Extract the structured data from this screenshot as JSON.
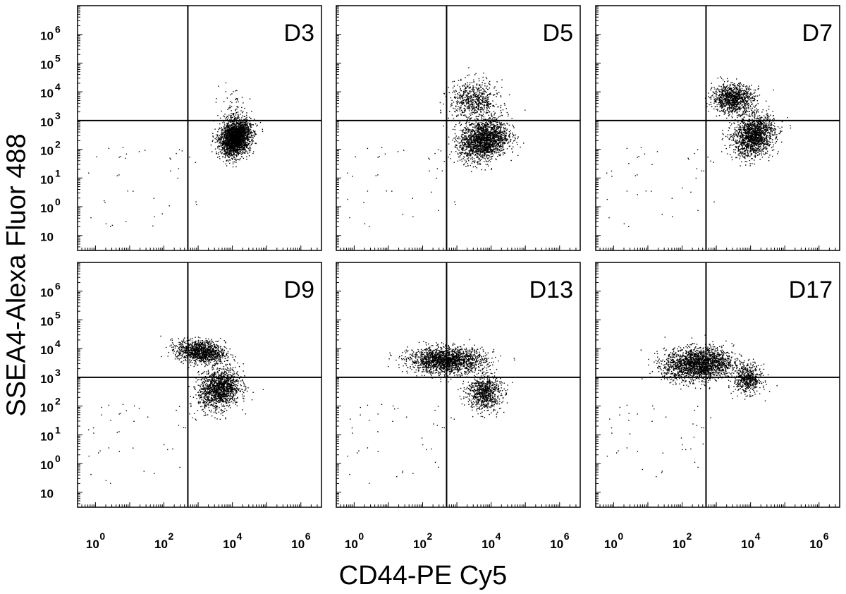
{
  "figure": {
    "x_label": "CD44-PE Cy5",
    "y_label": "SSEA4-Alexa Fluor 488"
  },
  "chart_data": {
    "type": "scatter",
    "layout": "2x3 grid of flow cytometry dot plots with quadrant gates",
    "x_scale": "log",
    "y_scale": "log",
    "xlim": [
      0.3,
      4000000
    ],
    "ylim": [
      0.03,
      10000000
    ],
    "x_ticks": [
      {
        "base": "10",
        "exp": "0",
        "value": 1
      },
      {
        "base": "10",
        "exp": "2",
        "value": 100
      },
      {
        "base": "10",
        "exp": "4",
        "value": 10000
      },
      {
        "base": "10",
        "exp": "6",
        "value": 1000000
      }
    ],
    "y_ticks": [
      {
        "base": "10",
        "exp": "",
        "value": 0.1
      },
      {
        "base": "10",
        "exp": "0",
        "value": 1
      },
      {
        "base": "10",
        "exp": "1",
        "value": 10
      },
      {
        "base": "10",
        "exp": "2",
        "value": 100
      },
      {
        "base": "10",
        "exp": "3",
        "value": 1000
      },
      {
        "base": "10",
        "exp": "4",
        "value": 10000
      },
      {
        "base": "10",
        "exp": "5",
        "value": 100000
      },
      {
        "base": "10",
        "exp": "6",
        "value": 1000000
      }
    ],
    "marker_color": "#000000",
    "panels": [
      {
        "title": "D3",
        "gate_x": 500,
        "gate_y": 1000,
        "populations": [
          {
            "cx": 12000,
            "cy": 250,
            "sx": 0.22,
            "sy": 0.3,
            "rho": 0.2,
            "weight": 0.96
          },
          {
            "cx": 10000,
            "cy": 1500,
            "sx": 0.2,
            "sy": 0.45,
            "rho": 0.0,
            "weight": 0.04
          }
        ]
      },
      {
        "title": "D5",
        "gate_x": 500,
        "gate_y": 1000,
        "populations": [
          {
            "cx": 6000,
            "cy": 220,
            "sx": 0.35,
            "sy": 0.35,
            "rho": 0.2,
            "weight": 0.75
          },
          {
            "cx": 3000,
            "cy": 5000,
            "sx": 0.35,
            "sy": 0.35,
            "rho": 0.0,
            "weight": 0.25
          }
        ]
      },
      {
        "title": "D7",
        "gate_x": 500,
        "gate_y": 1000,
        "populations": [
          {
            "cx": 3000,
            "cy": 6000,
            "sx": 0.3,
            "sy": 0.25,
            "rho": 0.0,
            "weight": 0.4
          },
          {
            "cx": 12000,
            "cy": 300,
            "sx": 0.3,
            "sy": 0.35,
            "rho": 0.2,
            "weight": 0.6
          }
        ]
      },
      {
        "title": "D9",
        "gate_x": 500,
        "gate_y": 1000,
        "populations": [
          {
            "cx": 1200,
            "cy": 8000,
            "sx": 0.35,
            "sy": 0.2,
            "rho": -0.2,
            "weight": 0.45
          },
          {
            "cx": 4000,
            "cy": 400,
            "sx": 0.3,
            "sy": 0.35,
            "rho": 0.2,
            "weight": 0.55
          }
        ]
      },
      {
        "title": "D13",
        "gate_x": 500,
        "gate_y": 1000,
        "populations": [
          {
            "cx": 500,
            "cy": 4000,
            "sx": 0.55,
            "sy": 0.22,
            "rho": 0.0,
            "weight": 0.7
          },
          {
            "cx": 6000,
            "cy": 300,
            "sx": 0.25,
            "sy": 0.3,
            "rho": 0.0,
            "weight": 0.3
          }
        ]
      },
      {
        "title": "D17",
        "gate_x": 500,
        "gate_y": 1000,
        "populations": [
          {
            "cx": 300,
            "cy": 3000,
            "sx": 0.5,
            "sy": 0.28,
            "rho": 0.1,
            "weight": 0.8
          },
          {
            "cx": 8000,
            "cy": 900,
            "sx": 0.2,
            "sy": 0.25,
            "rho": 0.0,
            "weight": 0.2
          }
        ]
      }
    ]
  }
}
